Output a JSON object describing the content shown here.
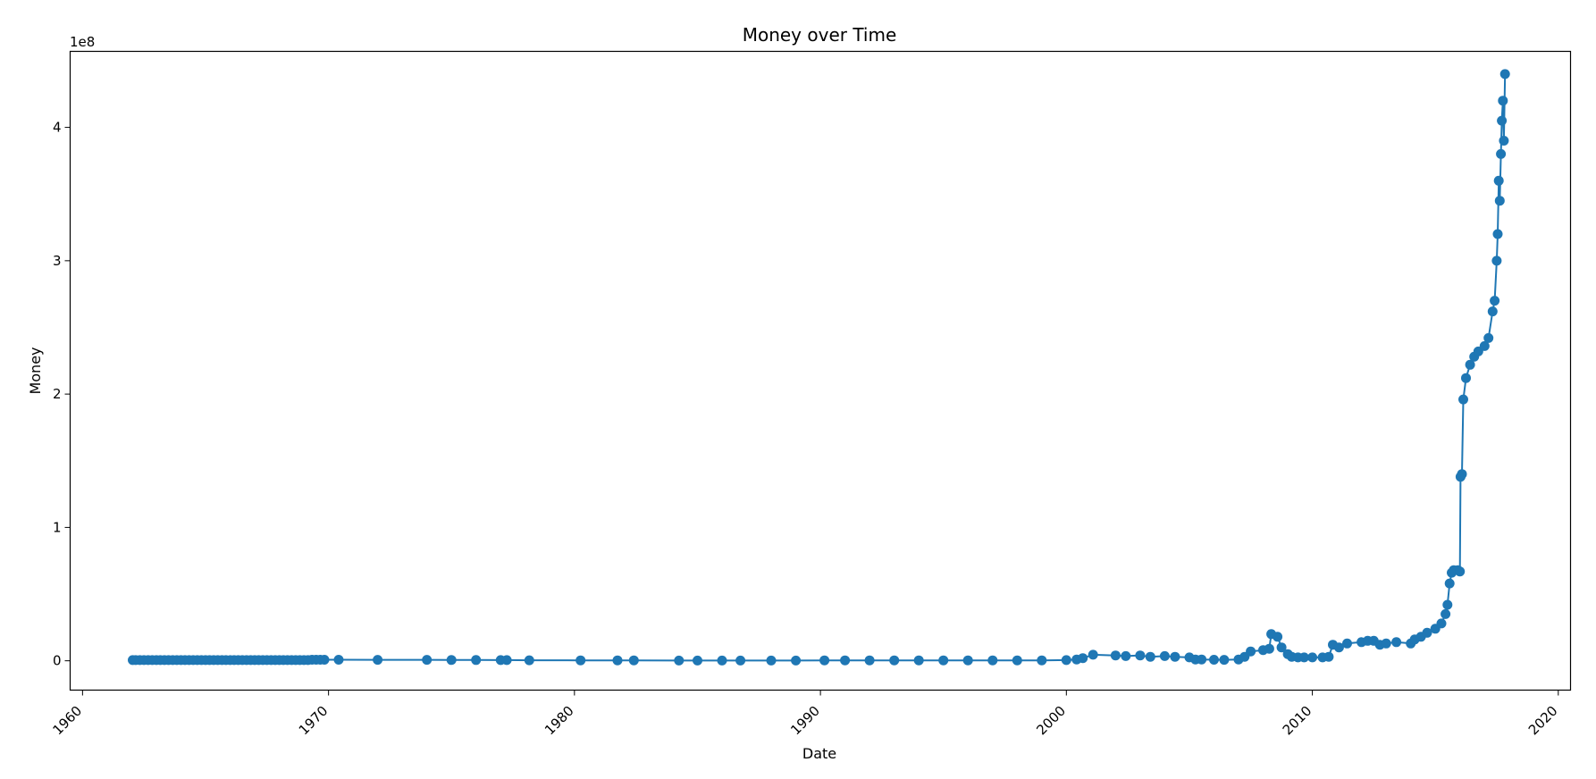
{
  "chart_data": {
    "type": "line",
    "title": "Money over Time",
    "xlabel": "Date",
    "ylabel": "Money",
    "y_offset_label": "1e8",
    "xlim": [
      "1959-07-01",
      "2020-07-01"
    ],
    "ylim": [
      -22000000,
      457000000
    ],
    "x_ticks": [
      "1960",
      "1970",
      "1980",
      "1990",
      "2000",
      "2010",
      "2020"
    ],
    "y_ticks": [
      {
        "value": 0,
        "label": "0"
      },
      {
        "value": 100000000,
        "label": "1"
      },
      {
        "value": 200000000,
        "label": "2"
      },
      {
        "value": 300000000,
        "label": "3"
      },
      {
        "value": 400000000,
        "label": "4"
      }
    ],
    "grid": false,
    "legend": "none",
    "marker": "circle",
    "color": "#1f77b4",
    "series": [
      {
        "x": [
          "1962-01-15",
          "1962-03-01",
          "1962-05-01",
          "1962-07-01",
          "1962-09-01",
          "1962-11-01",
          "1963-01-01",
          "1963-03-01",
          "1963-05-01",
          "1963-07-01",
          "1963-09-01",
          "1963-11-01",
          "1964-01-01",
          "1964-03-01",
          "1964-05-01",
          "1964-07-01",
          "1964-09-01",
          "1964-11-01",
          "1965-01-01",
          "1965-03-01",
          "1965-05-01",
          "1965-07-01",
          "1965-09-01",
          "1965-11-01",
          "1966-01-01",
          "1966-03-01",
          "1966-05-01",
          "1966-07-01",
          "1966-09-01",
          "1966-11-01",
          "1967-01-01",
          "1967-03-01",
          "1967-05-01",
          "1967-07-01",
          "1967-09-01",
          "1967-11-01",
          "1968-01-01",
          "1968-03-01",
          "1968-05-01",
          "1968-07-01",
          "1968-09-01",
          "1968-11-01",
          "1969-01-01",
          "1969-03-01",
          "1969-05-01",
          "1969-07-01",
          "1969-09-01",
          "1969-11-01",
          "1970-06-01",
          "1972-01-01",
          "1974-01-01",
          "1975-01-01",
          "1976-01-01",
          "1977-01-01",
          "1977-04-01",
          "1978-03-01",
          "1980-04-01",
          "1981-10-01",
          "1982-06-01",
          "1984-04-01",
          "1985-01-01",
          "1986-01-01",
          "1986-10-01",
          "1988-01-01",
          "1989-01-01",
          "1990-03-01",
          "1991-01-01",
          "1992-01-01",
          "1993-01-01",
          "1994-01-01",
          "1995-01-01",
          "1996-01-01",
          "1997-01-01",
          "1998-01-01",
          "1999-01-01",
          "2000-01-01",
          "2000-06-01",
          "2000-09-01",
          "2001-02-01",
          "2002-01-01",
          "2002-06-01",
          "2003-01-01",
          "2003-06-01",
          "2004-01-01",
          "2004-06-01",
          "2005-01-01",
          "2005-04-01",
          "2005-07-01",
          "2006-01-01",
          "2006-06-01",
          "2007-01-01",
          "2007-04-01",
          "2007-07-01",
          "2008-01-01",
          "2008-04-01",
          "2008-05-01",
          "2008-08-01",
          "2008-10-01",
          "2009-01-01",
          "2009-03-01",
          "2009-06-01",
          "2009-09-01",
          "2010-01-01",
          "2010-06-01",
          "2010-09-01",
          "2010-11-01",
          "2011-02-01",
          "2011-06-01",
          "2012-01-01",
          "2012-04-01",
          "2012-07-01",
          "2012-10-01",
          "2013-01-01",
          "2013-06-01",
          "2014-01-01",
          "2014-03-01",
          "2014-06-01",
          "2014-09-01",
          "2015-01-01",
          "2015-04-01",
          "2015-06-01",
          "2015-07-01",
          "2015-08-01",
          "2015-09-01",
          "2015-10-01",
          "2015-12-01",
          "2016-01-01",
          "2016-01-10",
          "2016-02-01",
          "2016-02-20",
          "2016-04-01",
          "2016-06-01",
          "2016-08-01",
          "2016-10-01",
          "2017-01-01",
          "2017-03-01",
          "2017-05-01",
          "2017-06-01",
          "2017-07-01",
          "2017-07-15",
          "2017-08-01",
          "2017-08-15",
          "2017-09-01",
          "2017-09-15",
          "2017-10-01",
          "2017-10-15",
          "2017-11-01"
        ],
        "y": [
          500000,
          500000,
          500000,
          500000,
          500000,
          500000,
          500000,
          500000,
          500000,
          500000,
          500000,
          500000,
          500000,
          500000,
          500000,
          500000,
          500000,
          500000,
          500000,
          500000,
          500000,
          500000,
          500000,
          500000,
          500000,
          500000,
          500000,
          500000,
          500000,
          500000,
          500000,
          500000,
          500000,
          500000,
          500000,
          500000,
          500000,
          500000,
          500000,
          500000,
          500000,
          500000,
          500000,
          500000,
          800000,
          800000,
          800000,
          800000,
          800000,
          700000,
          700000,
          600000,
          600000,
          500000,
          500000,
          400000,
          300000,
          300000,
          300000,
          200000,
          200000,
          200000,
          200000,
          200000,
          200000,
          300000,
          300000,
          300000,
          300000,
          300000,
          300000,
          300000,
          300000,
          300000,
          300000,
          500000,
          1000000,
          2000000,
          4500000,
          4000000,
          3500000,
          4000000,
          3000000,
          3500000,
          3000000,
          2500000,
          1000000,
          1000000,
          800000,
          700000,
          1000000,
          3000000,
          7000000,
          8000000,
          9000000,
          20000000,
          18000000,
          10000000,
          5000000,
          3000000,
          2500000,
          2500000,
          2500000,
          2500000,
          3000000,
          12000000,
          10000000,
          13000000,
          14000000,
          15000000,
          15000000,
          12000000,
          13000000,
          14000000,
          13000000,
          16000000,
          18000000,
          21000000,
          24000000,
          28000000,
          35000000,
          42000000,
          58000000,
          66000000,
          68000000,
          68000000,
          67000000,
          138000000,
          140000000,
          196000000,
          212000000,
          222000000,
          228000000,
          232000000,
          236000000,
          242000000,
          262000000,
          270000000,
          300000000,
          320000000,
          360000000,
          345000000,
          380000000,
          405000000,
          420000000,
          390000000,
          440000000
        ]
      }
    ]
  }
}
